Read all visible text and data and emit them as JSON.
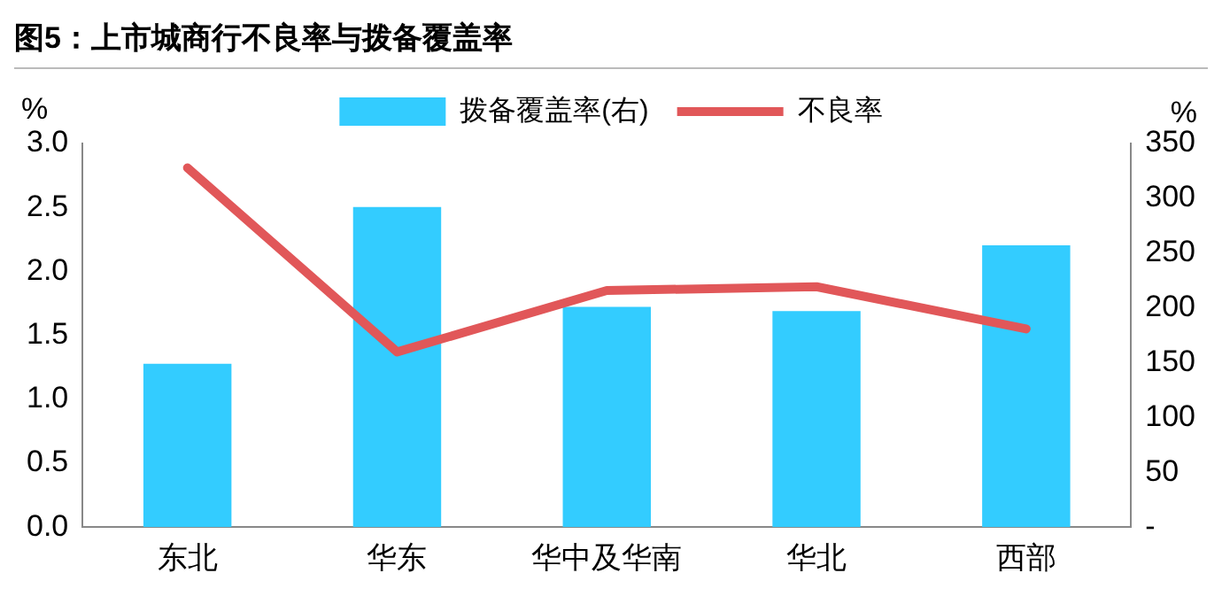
{
  "chart_data": {
    "type": "bar",
    "title": "图5：上市城商行不良率与拨备覆盖率",
    "categories": [
      "东北",
      "华东",
      "华中及华南",
      "华北",
      "西部"
    ],
    "series": [
      {
        "name": "拨备覆盖率(右)",
        "axis": "y2",
        "color": "#33ccff",
        "values": [
          149,
          292,
          201,
          197,
          257
        ]
      },
      {
        "name": "不良率",
        "type": "line",
        "color": "#e15759",
        "values": [
          2.81,
          1.37,
          1.85,
          1.88,
          1.55
        ]
      }
    ],
    "ylabel": "%",
    "y2label": "%",
    "ylim": [
      0,
      3
    ],
    "yticks": [
      {
        "value": 0,
        "label": "0.0"
      },
      0.5,
      {
        "value": 1,
        "label": "1.0"
      },
      1.5,
      {
        "value": 2,
        "label": "2.0"
      },
      2.5,
      {
        "value": 3,
        "label": "3.0"
      }
    ],
    "y2lim": [
      0,
      350
    ],
    "y2ticks": [
      {
        "value": 0,
        "label": "-"
      },
      50,
      100,
      150,
      200,
      250,
      300,
      350
    ],
    "legend": "top",
    "grid": false,
    "marker": "none",
    "line_style": "solid"
  }
}
